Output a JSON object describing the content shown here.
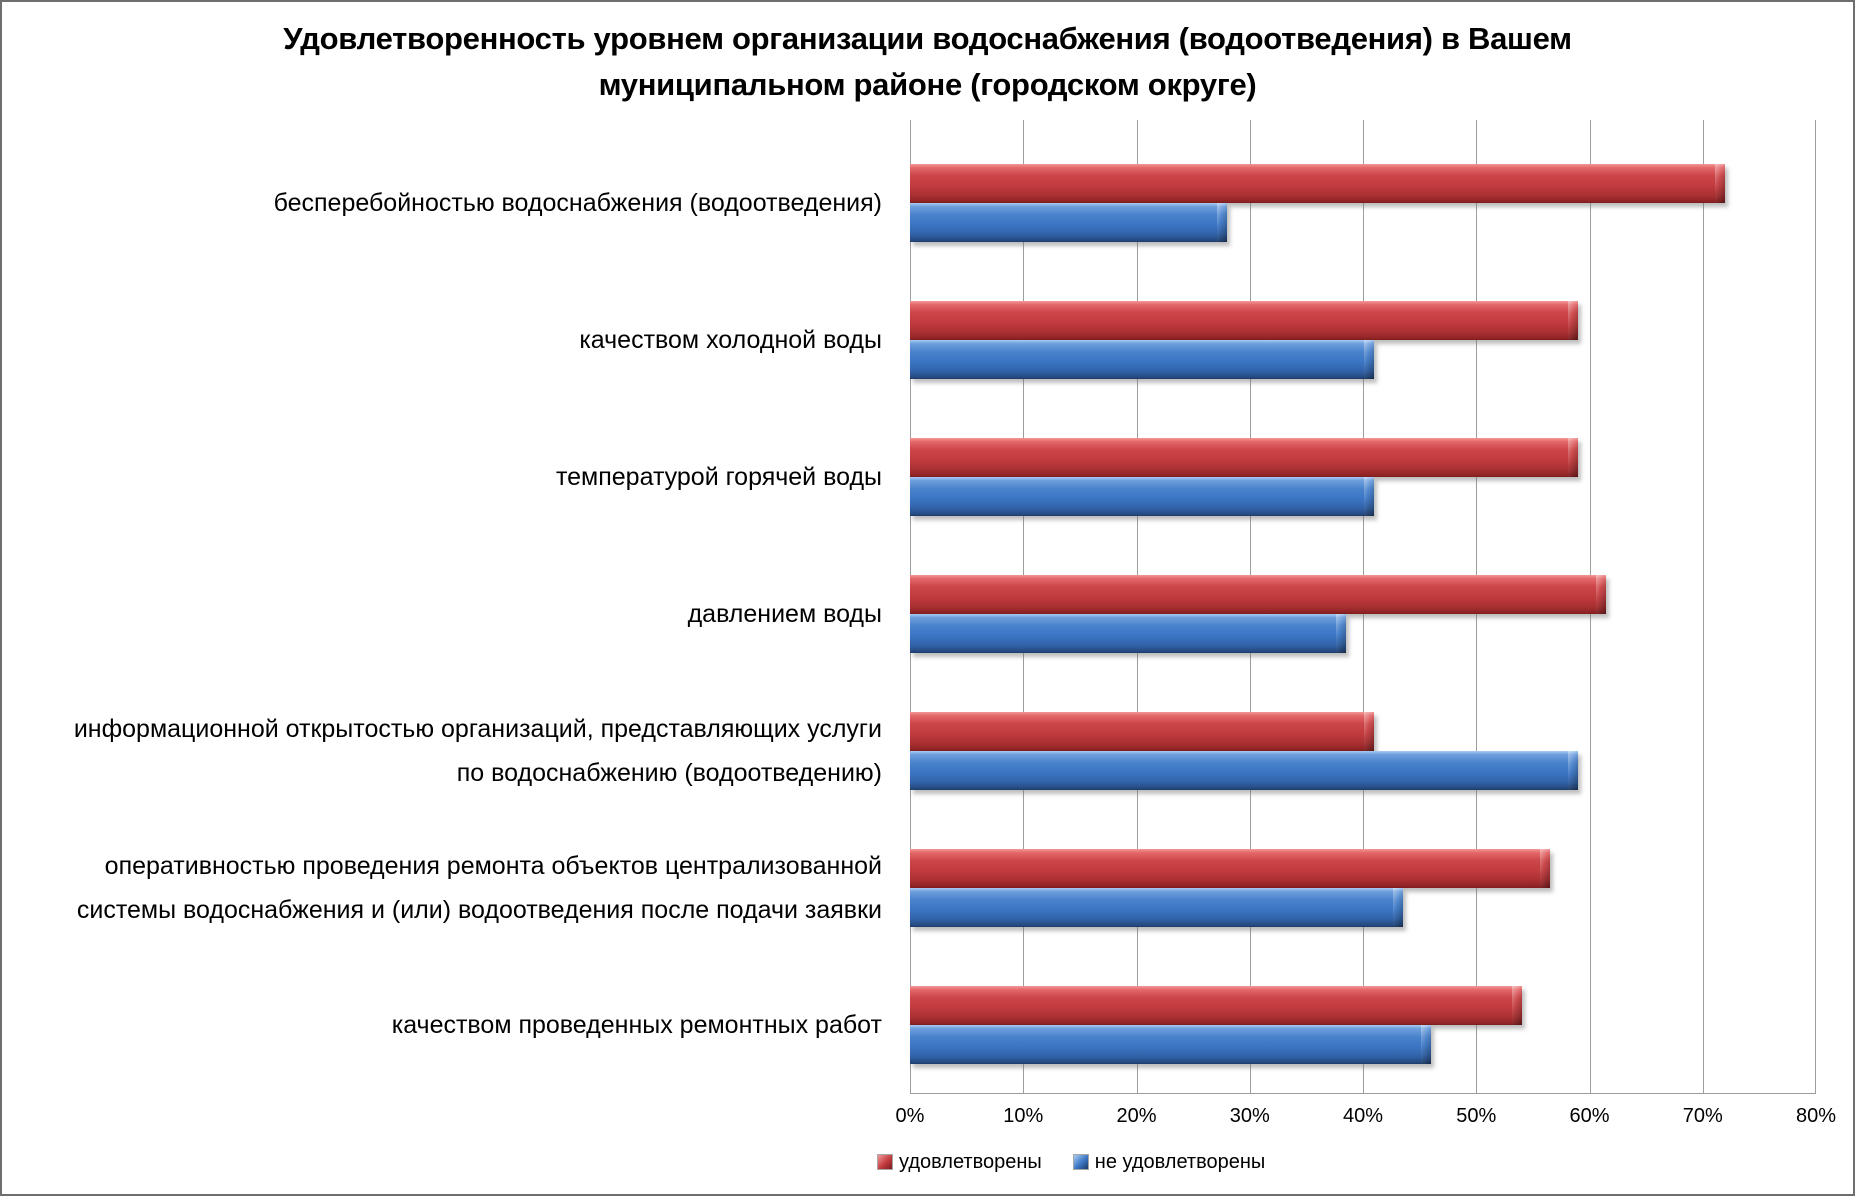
{
  "colors": {
    "satisfied": "#C23B3E",
    "unsatisfied": "#3B76C4",
    "gridline": "#9D9D9D",
    "background": "#FFFFFF"
  },
  "chart_data": {
    "type": "bar",
    "orientation": "horizontal",
    "title": "Удовлетворенность уровнем организации водоснабжения (водоотведения) в Вашем\nмуниципальном районе (городском округе)",
    "categories": [
      "бесперебойностью водоснабжения (водоотведения)",
      "качеством холодной воды",
      "температурой горячей воды",
      "давлением воды",
      "информационной открытостью организаций, представляющих услуги\nпо водоснабжению (водоотведению)",
      "оперативностью проведения ремонта объектов централизованной\nсистемы водоснабжения и (или) водоотведения после подачи заявки",
      "качеством проведенных ремонтных работ"
    ],
    "series": [
      {
        "key": "satisfied",
        "name": "удовлетворены",
        "color": "#C23B3E",
        "values": [
          72,
          59,
          59,
          61.5,
          41,
          56.5,
          54
        ]
      },
      {
        "key": "unsatisfied",
        "name": "не удовлетворены",
        "color": "#3B76C4",
        "values": [
          28,
          41,
          41,
          38.5,
          59,
          43.5,
          46
        ]
      }
    ],
    "x_ticks": [
      "0%",
      "10%",
      "20%",
      "30%",
      "40%",
      "50%",
      "60%",
      "70%",
      "80%"
    ],
    "xlim": [
      0,
      80
    ],
    "grid": true,
    "legend_position": "bottom"
  }
}
